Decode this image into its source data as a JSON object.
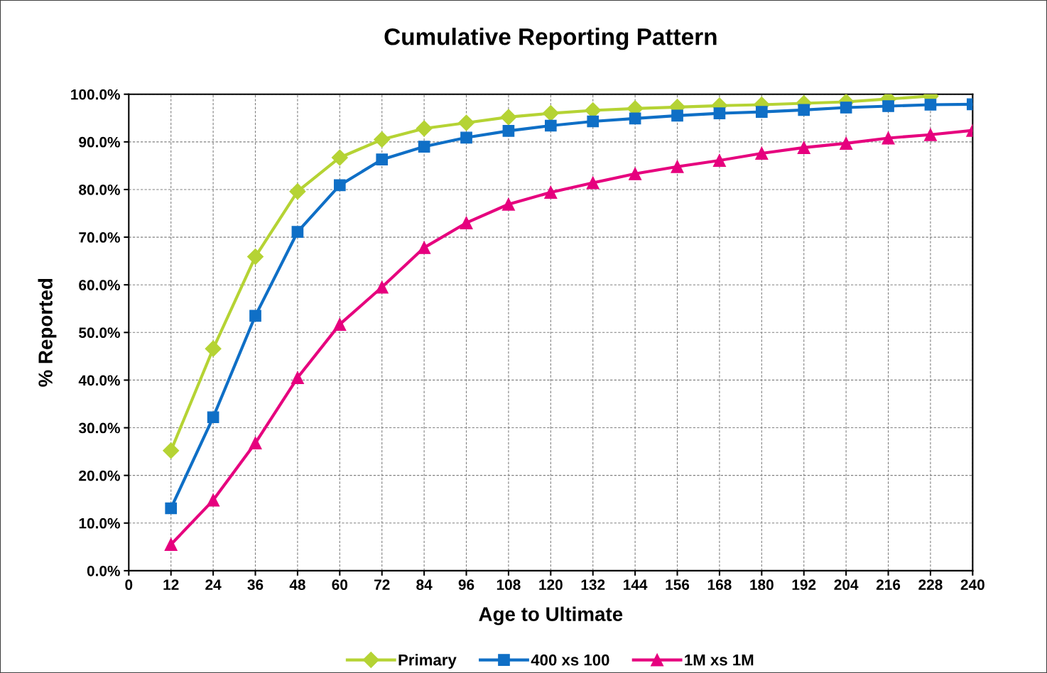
{
  "chart_data": {
    "type": "line",
    "title": "Cumulative Reporting Pattern",
    "xlabel": "Age to Ultimate",
    "ylabel": "% Reported",
    "xlim": [
      0,
      240
    ],
    "xticks": [
      0,
      12,
      24,
      36,
      48,
      60,
      72,
      84,
      96,
      108,
      120,
      132,
      144,
      156,
      168,
      180,
      192,
      204,
      216,
      228,
      240
    ],
    "ylim": [
      0,
      100
    ],
    "yticks": [
      {
        "value": 0,
        "label": "0.0%"
      },
      {
        "value": 10,
        "label": "10.0%"
      },
      {
        "value": 20,
        "label": "20.0%"
      },
      {
        "value": 30,
        "label": "30.0%"
      },
      {
        "value": 40,
        "label": "40.0%"
      },
      {
        "value": 50,
        "label": "50.0%"
      },
      {
        "value": 60,
        "label": "60.0%"
      },
      {
        "value": 70,
        "label": "70.0%"
      },
      {
        "value": 80,
        "label": "80.0%"
      },
      {
        "value": 90,
        "label": "90.0%"
      },
      {
        "value": 100,
        "label": "100.0%"
      }
    ],
    "grid": true,
    "legend": "bottom",
    "line_style": "solid",
    "x": [
      12,
      24,
      36,
      48,
      60,
      72,
      84,
      96,
      108,
      120,
      132,
      144,
      156,
      168,
      180,
      192,
      204,
      216,
      228,
      240
    ],
    "series": [
      {
        "name": "Primary",
        "color": "#b5d334",
        "marker": "diamond",
        "values": [
          25.2,
          46.6,
          65.9,
          79.6,
          86.7,
          90.5,
          92.8,
          94.0,
          95.2,
          96.0,
          96.6,
          97.0,
          97.3,
          97.6,
          97.8,
          98.1,
          98.4,
          99.0,
          99.6,
          null
        ]
      },
      {
        "name": "400 xs 100",
        "color": "#0f6fc6",
        "marker": "square",
        "values": [
          13.1,
          32.2,
          53.5,
          71.1,
          80.9,
          86.3,
          89.0,
          90.9,
          92.3,
          93.4,
          94.3,
          94.9,
          95.5,
          96.0,
          96.3,
          96.7,
          97.2,
          97.5,
          97.8,
          97.9
        ]
      },
      {
        "name": "1M xs 1M",
        "color": "#e6007e",
        "marker": "triangle",
        "values": [
          5.5,
          14.8,
          26.8,
          40.5,
          51.7,
          59.5,
          67.8,
          73.0,
          76.9,
          79.4,
          81.4,
          83.3,
          84.8,
          86.1,
          87.6,
          88.8,
          89.7,
          90.8,
          91.5,
          92.4
        ]
      }
    ]
  }
}
